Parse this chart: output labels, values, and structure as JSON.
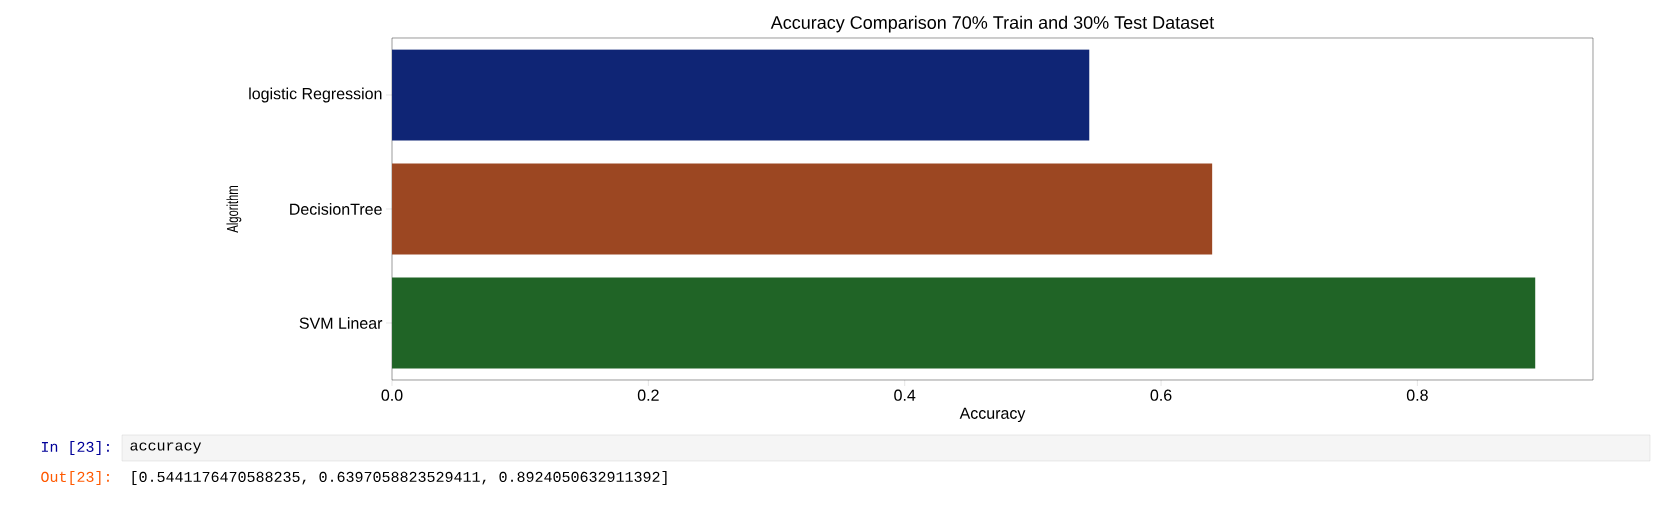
{
  "chart_data": {
    "type": "bar",
    "orientation": "horizontal",
    "title": "Accuracy Comparison 70% Train and 30% Test Dataset",
    "xlabel": "Accuracy",
    "ylabel": "Algorithm",
    "categories": [
      "logistic Regression",
      "DecisionTree",
      "SVM Linear"
    ],
    "values": [
      0.544,
      0.64,
      0.892
    ],
    "colors": [
      "#0f2575",
      "#9c4722",
      "#206426"
    ],
    "xlim": [
      0,
      0.937
    ],
    "xticks": [
      {
        "value": 0,
        "label": "0.0"
      },
      {
        "value": 0.2,
        "label": "0.2"
      },
      {
        "value": 0.4,
        "label": "0.4"
      },
      {
        "value": 0.6,
        "label": "0.6"
      },
      {
        "value": 0.8,
        "label": "0.8"
      }
    ],
    "annotations": [
      "In [23]:",
      "accuracy",
      "Out[23]:",
      "[0.5441176470588235, 0.6397058823529411, 0.8924050632911392]"
    ]
  }
}
